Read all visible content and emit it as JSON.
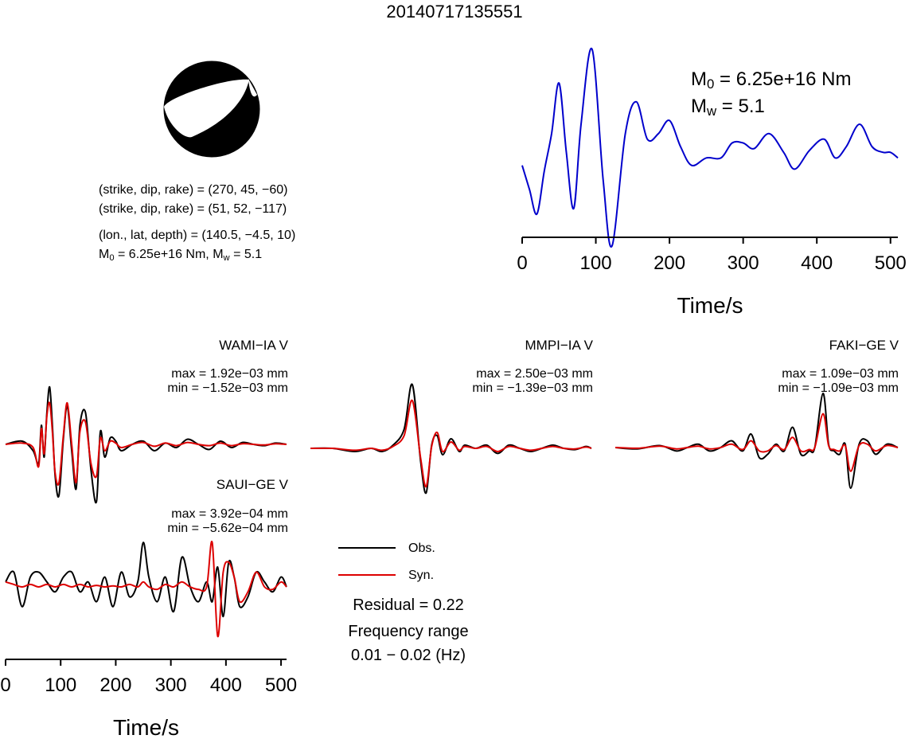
{
  "title": "20140717135551",
  "source_info": {
    "line1": "(strike, dip, rake) = (270, 45, −60)",
    "line2": "(strike, dip, rake) = (51, 52, −117)",
    "line3": "(lon., lat, depth) = (140.5, −4.5, 10)",
    "m0_prefix": "M",
    "m0_sub": "0",
    "m0_value": " = 6.25e+16 Nm, M",
    "mw_sub": "w",
    "mw_value": " = 5.1"
  },
  "moment": {
    "m0_label": "M",
    "m0_sub": "0",
    "m0_value": " = 6.25e+16 Nm",
    "mw_label": "M",
    "mw_sub": "w",
    "mw_value": " = 5.1"
  },
  "colors": {
    "observed": "#000000",
    "synthetic": "#dd0000",
    "stf": "#0000cc",
    "beachball": "#000000"
  },
  "legend": {
    "obs": "Obs.",
    "syn": "Syn.",
    "residual": "Residual = 0.22",
    "freq_label": "Frequency range",
    "freq_value": "0.01 − 0.02 (Hz)"
  },
  "stations": [
    {
      "name": "WAMI−IA V",
      "max": "max = 1.92e−03 mm",
      "min": "min = −1.52e−03 mm"
    },
    {
      "name": "MMPI−IA V",
      "max": "max = 2.50e−03 mm",
      "min": "min = −1.39e−03 mm"
    },
    {
      "name": "FAKI−GE V",
      "max": "max = 1.09e−03 mm",
      "min": "min = −1.09e−03 mm"
    },
    {
      "name": "SAUI−GE V",
      "max": "max = 3.92e−04 mm",
      "min": "min = −5.62e−04 mm"
    }
  ],
  "chart_data": [
    {
      "type": "line",
      "xlabel": "Time/s",
      "ylabel": "",
      "xlim": [
        0,
        510
      ],
      "xticks": [
        "0",
        "100",
        "200",
        "300",
        "400",
        "500"
      ],
      "series": [
        {
          "x": [
            0,
            10,
            20,
            30,
            40,
            50,
            60,
            70,
            80,
            95,
            110,
            122,
            140,
            155,
            170,
            185,
            200,
            215,
            230,
            250,
            270,
            285,
            300,
            315,
            335,
            355,
            370,
            390,
            410,
            425,
            440,
            458,
            475,
            490,
            500,
            510
          ],
          "y": [
            0.38,
            0.25,
            0.12,
            0.35,
            0.55,
            0.82,
            0.45,
            0.15,
            0.6,
            1.0,
            0.3,
            -0.05,
            0.55,
            0.72,
            0.52,
            0.55,
            0.62,
            0.48,
            0.38,
            0.42,
            0.42,
            0.5,
            0.5,
            0.47,
            0.55,
            0.45,
            0.36,
            0.46,
            0.52,
            0.42,
            0.48,
            0.6,
            0.48,
            0.45,
            0.45,
            0.42
          ]
        }
      ]
    },
    {
      "type": "line",
      "xlabel": "Time/s",
      "xlim": [
        0,
        510
      ],
      "xticks": [
        "0",
        "100",
        "200",
        "300",
        "400",
        "500"
      ],
      "series": [
        {
          "name": "Obs.",
          "x": [
            0,
            30,
            50,
            60,
            65,
            70,
            75,
            80,
            85,
            90,
            97,
            105,
            112,
            120,
            128,
            135,
            145,
            155,
            165,
            172,
            180,
            190,
            200,
            210,
            230,
            250,
            270,
            290,
            310,
            330,
            350,
            370,
            390,
            410,
            430,
            450,
            470,
            490,
            510
          ],
          "y": [
            0.0,
            0.05,
            -0.1,
            -0.3,
            0.3,
            -0.2,
            0.5,
            0.9,
            0.3,
            -0.5,
            -0.8,
            0.1,
            0.6,
            -0.1,
            -0.7,
            0.3,
            0.5,
            -0.4,
            -0.9,
            0.2,
            -0.2,
            0.1,
            0.05,
            -0.1,
            0.0,
            0.05,
            -0.1,
            0.02,
            -0.05,
            0.08,
            0.0,
            -0.08,
            0.05,
            -0.05,
            0.03,
            0.0,
            -0.02,
            0.02,
            0.0
          ]
        },
        {
          "name": "Syn.",
          "x": [
            0,
            30,
            50,
            60,
            65,
            70,
            75,
            80,
            85,
            90,
            97,
            105,
            112,
            120,
            128,
            135,
            145,
            155,
            165,
            172,
            180,
            190,
            200,
            210,
            230,
            250,
            270,
            290,
            310,
            330,
            350,
            370,
            390,
            410,
            430,
            450,
            470,
            490,
            510
          ],
          "y": [
            0.0,
            0.02,
            -0.05,
            -0.35,
            0.25,
            -0.15,
            0.45,
            0.65,
            0.2,
            -0.45,
            -0.6,
            0.15,
            0.65,
            0.0,
            -0.6,
            0.2,
            0.35,
            -0.3,
            -0.5,
            0.1,
            -0.1,
            0.05,
            0.02,
            -0.05,
            0.0,
            0.03,
            -0.03,
            0.02,
            -0.02,
            0.03,
            0.0,
            -0.02,
            0.02,
            -0.02,
            0.01,
            0.0,
            -0.01,
            0.01,
            0.0
          ]
        }
      ]
    },
    {
      "type": "line",
      "xlim": [
        0,
        510
      ],
      "series": [
        {
          "name": "Obs.",
          "x": [
            0,
            40,
            80,
            110,
            130,
            150,
            170,
            185,
            200,
            210,
            220,
            230,
            240,
            255,
            270,
            280,
            300,
            320,
            340,
            360,
            380,
            400,
            420,
            440,
            460,
            480,
            500,
            510
          ],
          "y": [
            0.0,
            0.0,
            -0.05,
            0.0,
            -0.05,
            0.05,
            0.3,
            1.0,
            -0.2,
            -0.7,
            0.05,
            0.2,
            -0.1,
            0.15,
            -0.05,
            0.05,
            0.0,
            0.05,
            -0.08,
            0.05,
            0.0,
            -0.05,
            0.0,
            0.05,
            0.0,
            -0.02,
            0.03,
            0.0
          ]
        },
        {
          "name": "Syn.",
          "x": [
            0,
            40,
            80,
            110,
            130,
            150,
            170,
            185,
            200,
            210,
            220,
            230,
            240,
            255,
            270,
            280,
            300,
            320,
            340,
            360,
            380,
            400,
            420,
            440,
            460,
            480,
            500,
            510
          ],
          "y": [
            0.0,
            0.0,
            -0.03,
            0.0,
            -0.03,
            0.03,
            0.2,
            0.75,
            -0.15,
            -0.6,
            0.03,
            0.25,
            -0.05,
            0.1,
            -0.03,
            0.03,
            0.0,
            0.03,
            -0.05,
            0.03,
            0.0,
            -0.03,
            0.0,
            0.03,
            0.0,
            -0.01,
            0.02,
            0.0
          ]
        }
      ]
    },
    {
      "type": "line",
      "xlim": [
        0,
        510
      ],
      "series": [
        {
          "name": "Obs.",
          "x": [
            0,
            40,
            80,
            110,
            130,
            150,
            170,
            190,
            210,
            230,
            245,
            260,
            275,
            290,
            305,
            320,
            335,
            350,
            360,
            375,
            385,
            395,
            405,
            415,
            425,
            440,
            455,
            470,
            490,
            510
          ],
          "y": [
            0.0,
            -0.02,
            0.03,
            -0.05,
            0.0,
            0.05,
            -0.05,
            0.0,
            0.1,
            -0.05,
            0.2,
            -0.15,
            -0.1,
            0.05,
            -0.05,
            0.3,
            -0.1,
            -0.05,
            0.0,
            0.8,
            0.05,
            -0.05,
            -0.1,
            0.05,
            -0.6,
            0.05,
            0.1,
            -0.1,
            0.05,
            0.0
          ]
        },
        {
          "name": "Syn.",
          "x": [
            0,
            40,
            80,
            110,
            130,
            150,
            170,
            190,
            210,
            230,
            245,
            260,
            275,
            290,
            305,
            320,
            335,
            350,
            360,
            375,
            385,
            395,
            405,
            415,
            425,
            440,
            455,
            470,
            490,
            510
          ],
          "y": [
            0.0,
            -0.01,
            0.02,
            -0.02,
            0.0,
            0.02,
            -0.02,
            0.0,
            0.05,
            -0.03,
            0.1,
            -0.05,
            -0.05,
            0.03,
            -0.03,
            0.15,
            -0.05,
            -0.03,
            0.0,
            0.5,
            0.03,
            -0.03,
            -0.05,
            0.03,
            -0.35,
            0.03,
            0.05,
            -0.05,
            0.03,
            0.0
          ]
        }
      ]
    },
    {
      "type": "line",
      "xlabel": "Time/s",
      "xlim": [
        0,
        510
      ],
      "xticks": [
        "0",
        "100",
        "200",
        "300",
        "400",
        "500"
      ],
      "series": [
        {
          "name": "Obs.",
          "x": [
            0,
            15,
            30,
            45,
            60,
            75,
            90,
            105,
            120,
            135,
            150,
            165,
            180,
            195,
            210,
            225,
            240,
            250,
            260,
            275,
            290,
            305,
            320,
            335,
            350,
            365,
            375,
            385,
            395,
            405,
            415,
            425,
            440,
            455,
            470,
            485,
            500,
            510
          ],
          "y": [
            0.1,
            0.3,
            -0.4,
            0.2,
            0.3,
            0.1,
            -0.1,
            0.2,
            0.3,
            -0.1,
            0.1,
            -0.3,
            0.2,
            -0.4,
            0.3,
            -0.2,
            0.1,
            0.9,
            0.2,
            -0.3,
            0.2,
            -0.5,
            0.6,
            0.0,
            -0.3,
            0.1,
            -0.3,
            0.4,
            -0.6,
            0.5,
            0.2,
            -0.4,
            -0.2,
            0.3,
            0.1,
            -0.1,
            0.2,
            0.0
          ]
        },
        {
          "name": "Syn.",
          "x": [
            0,
            15,
            30,
            45,
            60,
            75,
            90,
            105,
            120,
            135,
            150,
            165,
            180,
            195,
            210,
            225,
            240,
            250,
            260,
            275,
            290,
            305,
            320,
            335,
            350,
            365,
            375,
            385,
            395,
            405,
            415,
            425,
            440,
            455,
            470,
            485,
            500,
            510
          ],
          "y": [
            0.1,
            0.05,
            0.0,
            0.05,
            0.0,
            0.05,
            0.0,
            0.05,
            0.0,
            0.05,
            0.0,
            0.03,
            0.0,
            0.02,
            0.0,
            0.05,
            0.0,
            0.1,
            0.0,
            -0.05,
            0.05,
            0.0,
            0.1,
            0.0,
            -0.05,
            0.0,
            0.9,
            -1.0,
            0.3,
            0.5,
            0.2,
            -0.3,
            -0.1,
            0.3,
            0.0,
            -0.05,
            0.1,
            0.0
          ]
        }
      ]
    }
  ]
}
